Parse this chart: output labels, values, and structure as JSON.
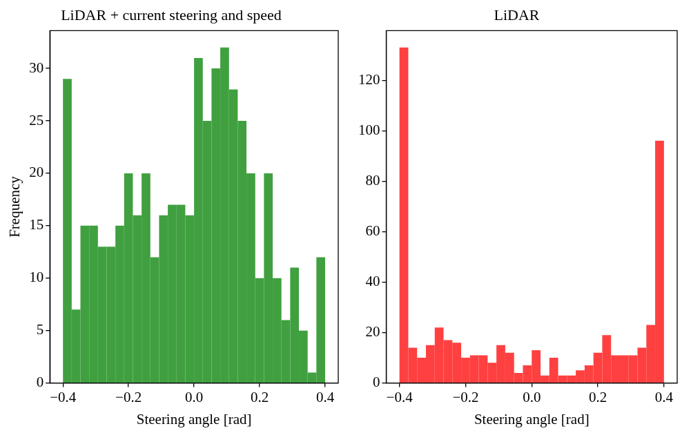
{
  "chart_data": [
    {
      "type": "histogram",
      "title": "LiDAR + current steering and speed",
      "xlabel": "Steering angle [rad]",
      "ylabel": "Frequency",
      "color": "#40a040",
      "bins": [
        -0.4,
        -0.3733,
        -0.3467,
        -0.32,
        -0.2933,
        -0.2667,
        -0.24,
        -0.2133,
        -0.1867,
        -0.16,
        -0.1333,
        -0.1067,
        -0.08,
        -0.0533,
        -0.0267,
        0,
        0.0267,
        0.0533,
        0.08,
        0.1067,
        0.1333,
        0.16,
        0.1867,
        0.2133,
        0.24,
        0.2667,
        0.2933,
        0.32,
        0.3467,
        0.3733,
        0.4
      ],
      "values": [
        29,
        7,
        15,
        15,
        13,
        13,
        15,
        20,
        16,
        20,
        12,
        16,
        17,
        17,
        16,
        31,
        25,
        30,
        32,
        28,
        25,
        20,
        10,
        20,
        10,
        6,
        11,
        5,
        1,
        12
      ],
      "xlim": [
        -0.44,
        0.44
      ],
      "ylim": [
        0,
        33.6
      ],
      "xticks": [
        {
          "value": -0.4,
          "label": "−0.4"
        },
        {
          "value": -0.2,
          "label": "−0.2"
        },
        {
          "value": 0,
          "label": "0.0"
        },
        {
          "value": 0.2,
          "label": "0.2"
        },
        {
          "value": 0.4,
          "label": "0.4"
        }
      ],
      "yticks": [
        0,
        5,
        10,
        15,
        20,
        25,
        30
      ]
    },
    {
      "type": "histogram",
      "title": "LiDAR",
      "xlabel": "Steering angle [rad]",
      "color": "#ff4040",
      "bins": [
        -0.4,
        -0.3733,
        -0.3467,
        -0.32,
        -0.2933,
        -0.2667,
        -0.24,
        -0.2133,
        -0.1867,
        -0.16,
        -0.1333,
        -0.1067,
        -0.08,
        -0.0533,
        -0.0267,
        0,
        0.0267,
        0.0533,
        0.08,
        0.1067,
        0.1333,
        0.16,
        0.1867,
        0.2133,
        0.24,
        0.2667,
        0.2933,
        0.32,
        0.3467,
        0.3733,
        0.4
      ],
      "values": [
        133,
        14,
        10,
        15,
        22,
        17,
        16,
        10,
        11,
        11,
        8,
        15,
        12,
        4,
        7,
        13,
        3,
        10,
        3,
        3,
        5,
        7,
        12,
        19,
        11,
        11,
        11,
        14,
        23,
        96
      ],
      "xlim": [
        -0.44,
        0.44
      ],
      "ylim": [
        0,
        139.65
      ],
      "xticks": [
        {
          "value": -0.4,
          "label": "−0.4"
        },
        {
          "value": -0.2,
          "label": "−0.2"
        },
        {
          "value": 0,
          "label": "0.0"
        },
        {
          "value": 0.2,
          "label": "0.2"
        },
        {
          "value": 0.4,
          "label": "0.4"
        }
      ],
      "yticks": [
        0,
        20,
        40,
        60,
        80,
        100,
        120
      ]
    }
  ]
}
